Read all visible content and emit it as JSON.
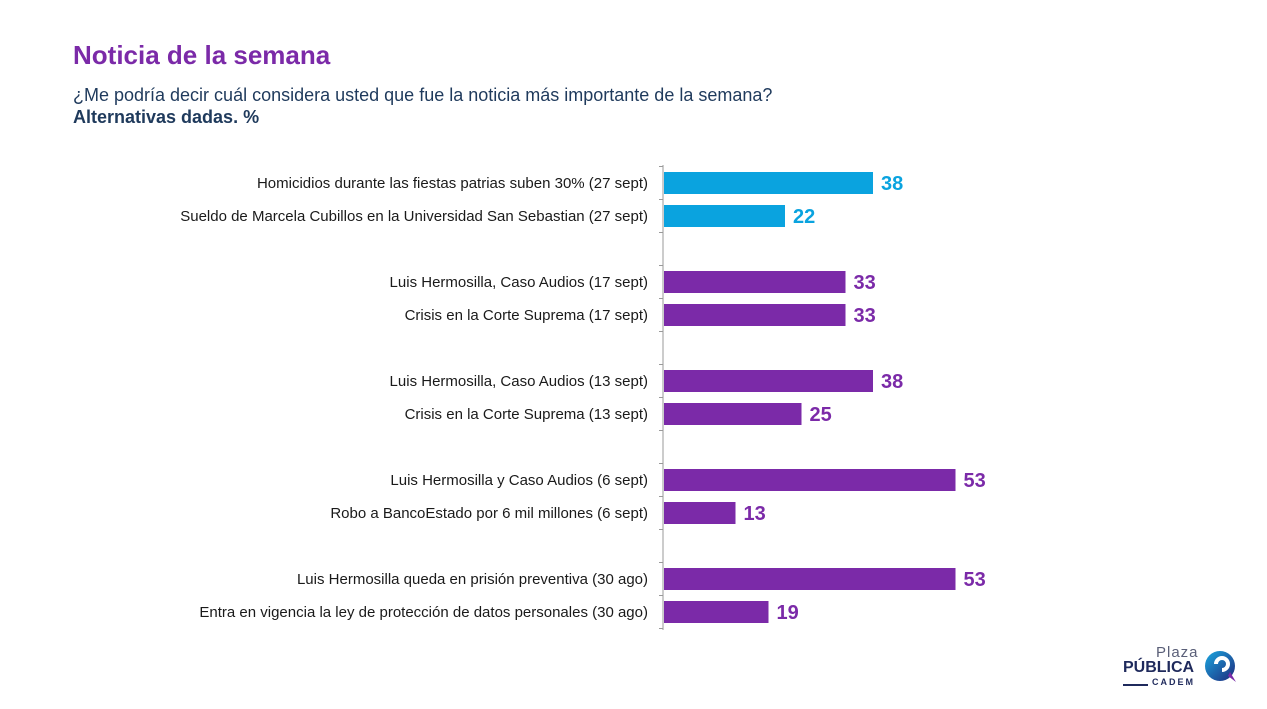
{
  "header": {
    "title": "Noticia de la semana",
    "subtitle": "¿Me podría decir cuál considera usted que fue la noticia más importante de la semana?",
    "note": "Alternativas dadas. %"
  },
  "logo": {
    "line1": "Plaza",
    "line2": "PÚBLICA",
    "line3": "CADEM"
  },
  "colors": {
    "highlight": "#0aa3df",
    "primary": "#7b2aa8",
    "title": "#7b2aa8",
    "subtitle": "#1f3a5c"
  },
  "chart_data": {
    "type": "bar",
    "orientation": "horizontal",
    "xlim": [
      0,
      60
    ],
    "grid": false,
    "categories": [
      "Homicidios durante las fiestas patrias suben 30% (27 sept)",
      "Sueldo de Marcela Cubillos en la Universidad San Sebastian (27 sept)",
      "Luis Hermosilla, Caso Audios (17 sept)",
      "Crisis en la Corte Suprema  (17 sept)",
      "Luis Hermosilla, Caso Audios (13 sept)",
      "Crisis en la Corte Suprema  (13 sept)",
      "Luis Hermosilla y Caso Audios (6 sept)",
      "Robo a BancoEstado por 6 mil millones (6 sept)",
      "Luis Hermosilla queda en prisión preventiva (30 ago)",
      "Entra en vigencia la ley de protección de datos personales (30 ago)"
    ],
    "values": [
      38,
      22,
      33,
      33,
      38,
      25,
      53,
      13,
      53,
      19
    ],
    "groups": [
      0,
      0,
      1,
      1,
      2,
      2,
      3,
      3,
      4,
      4
    ],
    "highlight_group": 0
  }
}
